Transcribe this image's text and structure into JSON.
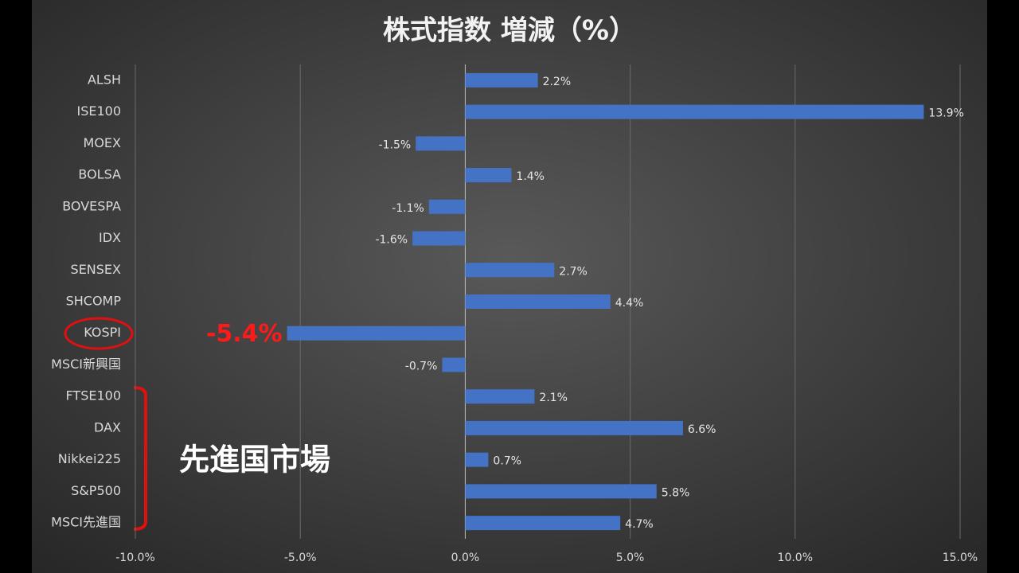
{
  "chart_data": {
    "type": "barh",
    "title": "株式指数 増減（%）",
    "categories": [
      "ALSH",
      "ISE100",
      "MOEX",
      "BOLSA",
      "BOVESPA",
      "IDX",
      "SENSEX",
      "SHCOMP",
      "KOSPI",
      "MSCI新興国",
      "FTSE100",
      "DAX",
      "Nikkei225",
      "S&P500",
      "MSCI先進国"
    ],
    "values": [
      2.2,
      13.9,
      -1.5,
      1.4,
      -1.1,
      -1.6,
      2.7,
      4.4,
      -5.4,
      -0.7,
      2.1,
      6.6,
      0.7,
      5.8,
      4.7
    ],
    "value_labels": [
      "2.2%",
      "13.9%",
      "-1.5%",
      "1.4%",
      "-1.1%",
      "-1.6%",
      "2.7%",
      "4.4%",
      "-5.4%",
      "-0.7%",
      "2.1%",
      "6.6%",
      "0.7%",
      "5.8%",
      "4.7%"
    ],
    "color": "#4472c4",
    "xlim": [
      -10,
      15
    ],
    "xticks": [
      {
        "value": -10,
        "label": "-10.0%"
      },
      {
        "value": -5,
        "label": "-5.0%"
      },
      {
        "value": 0,
        "label": "0.0%"
      },
      {
        "value": 5,
        "label": "5.0%"
      },
      {
        "value": 10,
        "label": "10.0%"
      },
      {
        "value": 15,
        "label": "15.0%"
      }
    ],
    "grid": true,
    "annotations": [
      "先進国市場"
    ]
  }
}
